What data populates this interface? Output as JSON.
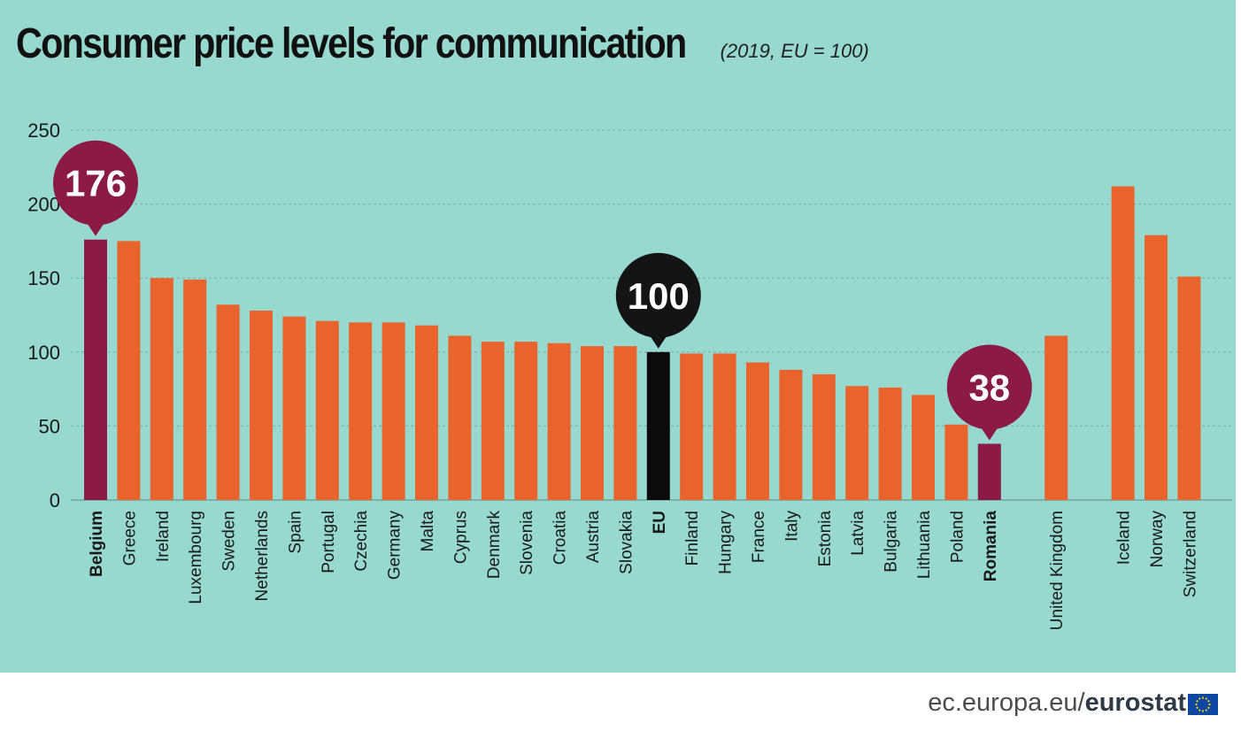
{
  "header": {
    "title": "Consumer price levels for communication",
    "subtitle": "(2019, EU = 100)"
  },
  "footer": {
    "url_prefix": "ec.europa.eu/",
    "brand": "eurostat",
    "flag_icon": "eu-flag-icon"
  },
  "colors": {
    "background": "#97d9cf",
    "bar_default": "#e8642c",
    "bar_highlight": "#8b1a45",
    "bar_eu": "#0b0b0b",
    "bubble_eu": "#141414"
  },
  "chart_data": {
    "type": "bar",
    "title": "Consumer price levels for communication",
    "subtitle": "(2019, EU = 100)",
    "ylim": [
      0,
      250
    ],
    "yticks": [
      0,
      50,
      100,
      150,
      200,
      250
    ],
    "grid": true,
    "categories": [
      "Belgium",
      "Greece",
      "Ireland",
      "Luxembourg",
      "Sweden",
      "Netherlands",
      "Spain",
      "Portugal",
      "Czechia",
      "Germany",
      "Malta",
      "Cyprus",
      "Denmark",
      "Slovenia",
      "Croatia",
      "Austria",
      "Slovakia",
      "EU",
      "Finland",
      "Hungary",
      "France",
      "Italy",
      "Estonia",
      "Latvia",
      "Bulgaria",
      "Lithuania",
      "Poland",
      "Romania",
      "United Kingdom",
      "Iceland",
      "Norway",
      "Switzerland"
    ],
    "values": [
      176,
      175,
      150,
      149,
      132,
      128,
      124,
      121,
      120,
      120,
      118,
      111,
      107,
      107,
      106,
      104,
      104,
      100,
      99,
      99,
      93,
      88,
      85,
      77,
      76,
      71,
      51,
      38,
      111,
      212,
      179,
      151
    ],
    "highlight": [
      "Belgium",
      "Romania"
    ],
    "reference": "EU",
    "callouts": [
      {
        "category": "Belgium",
        "label": "176"
      },
      {
        "category": "EU",
        "label": "100"
      },
      {
        "category": "Romania",
        "label": "38"
      }
    ]
  }
}
